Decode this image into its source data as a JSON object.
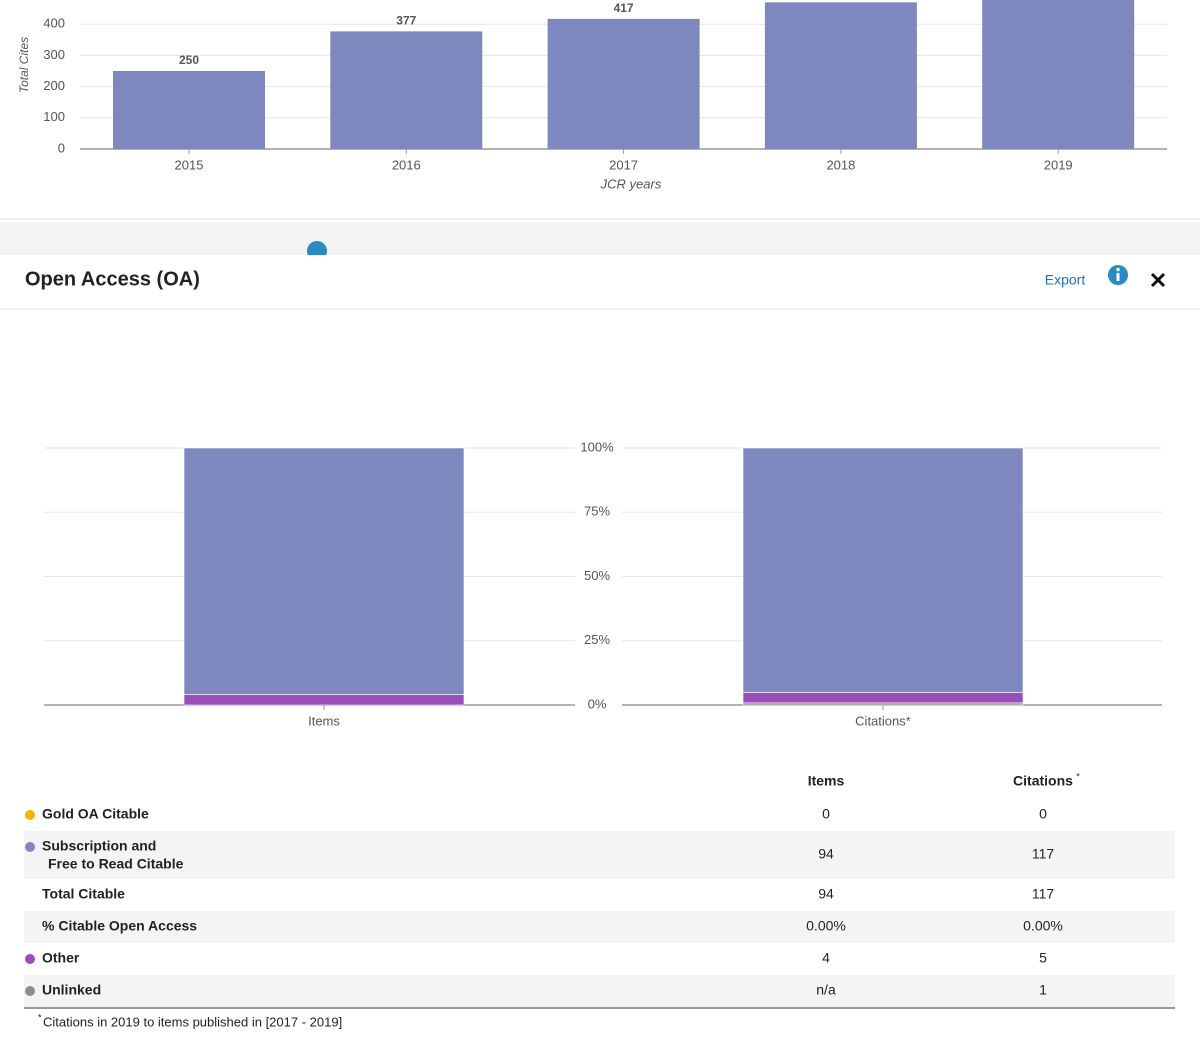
{
  "chart_data": [
    {
      "type": "bar",
      "y_label": "Total Cites",
      "x_label": "JCR years",
      "categories": [
        "2015",
        "2016",
        "2017",
        "2018",
        "2019"
      ],
      "values": [
        250,
        377,
        417,
        470,
        490
      ],
      "color": "#7f87bf",
      "ylim": [
        0,
        500
      ],
      "yticks": [
        0,
        100,
        200,
        300,
        400
      ],
      "grid": true
    },
    {
      "type": "stacked_bar",
      "categories": [
        "Items",
        "Citations*"
      ],
      "series": [
        {
          "color": "#8c8c8c",
          "values": [
            0,
            0.81
          ]
        },
        {
          "color": "#9a4fb8",
          "values": [
            4.08,
            4.07
          ]
        },
        {
          "color": "#7f87bf",
          "values": [
            95.92,
            95.12
          ]
        },
        {
          "color": "#f5b400",
          "values": [
            0,
            0
          ]
        }
      ],
      "ylim": [
        0,
        100
      ],
      "yticks": [
        {
          "value": 0,
          "label": "0%"
        },
        {
          "value": 25,
          "label": "25%"
        },
        {
          "value": 50,
          "label": "50%"
        },
        {
          "value": 75,
          "label": "75%"
        },
        {
          "value": 100,
          "label": "100%"
        }
      ],
      "grid": true
    }
  ],
  "modal": {
    "title": "Open Access (OA)",
    "export": "Export"
  },
  "table": {
    "columns": [
      {
        "text": "Items"
      },
      {
        "text": "Citations",
        "mark": "*"
      }
    ],
    "rows": [
      {
        "label": [
          "Gold OA Citable"
        ],
        "color": "#f5b400",
        "items": 0,
        "citations": 0
      },
      {
        "label": [
          "Subscription and",
          "Free to Read Citable"
        ],
        "color": "#7f87bf",
        "items": 94,
        "citations": 117
      },
      {
        "label": [
          "Total Citable"
        ],
        "items": 94,
        "citations": 117
      },
      {
        "label": [
          "% Citable Open Access"
        ],
        "items": "0.00%",
        "citations": "0.00%"
      },
      {
        "label": [
          "Other"
        ],
        "color": "#9a4fb8",
        "items": 4,
        "citations": 5
      },
      {
        "label": [
          "Unlinked"
        ],
        "color": "#8c8c8c",
        "items": "n/a",
        "citations": 1
      }
    ],
    "footnote": {
      "mark": "*",
      "text": "Citations in 2019 to items published in [2017 - 2019]"
    }
  }
}
